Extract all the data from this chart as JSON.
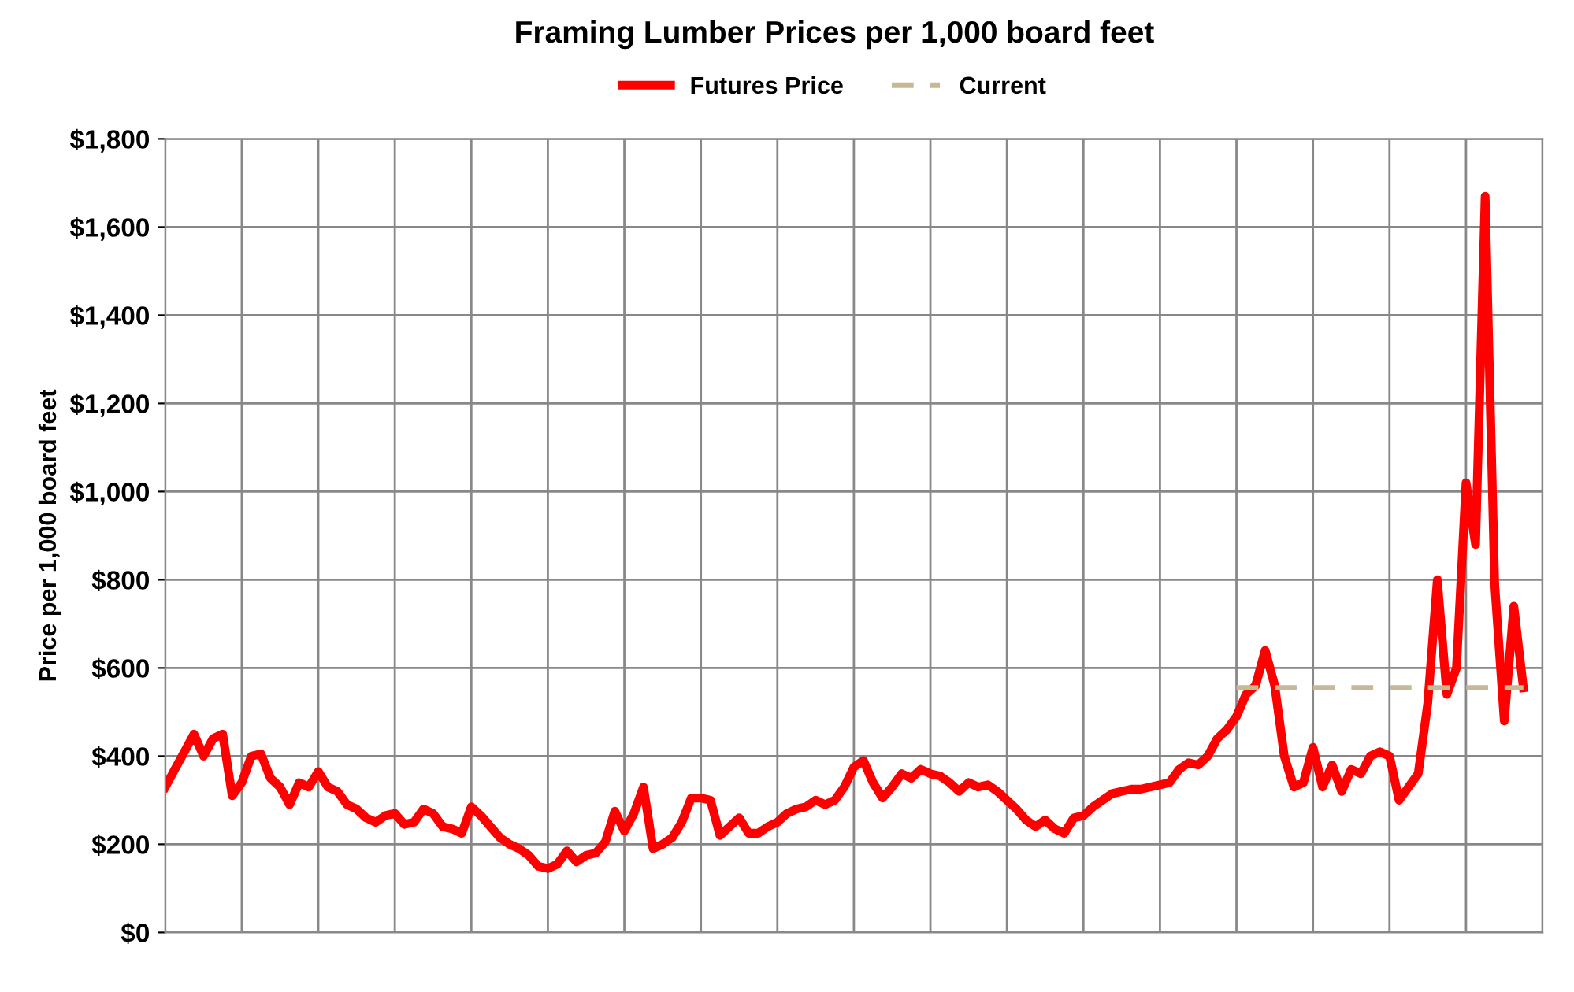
{
  "chart_data": {
    "type": "line",
    "title": "Framing Lumber Prices per 1,000 board feet",
    "ylabel": "Price per 1,000 board feet",
    "categories": [
      null,
      null,
      null,
      null,
      null,
      null,
      null,
      null,
      null,
      null,
      null,
      null,
      null,
      null,
      null,
      null,
      null,
      null,
      null,
      null,
      null,
      null,
      null,
      null,
      null,
      null,
      null,
      null,
      null,
      null,
      null,
      null,
      null,
      null,
      null,
      null,
      null,
      null,
      null,
      null,
      null,
      null,
      null,
      null,
      null,
      null,
      null,
      null,
      null,
      null,
      null,
      null,
      null,
      null,
      null,
      null,
      null,
      null,
      null,
      null,
      null,
      null,
      null,
      null,
      null,
      null,
      null,
      null,
      null,
      null,
      null,
      null,
      null,
      null,
      null,
      null,
      null,
      null,
      null,
      null,
      null,
      null,
      null,
      null,
      null,
      null,
      null,
      null,
      null,
      null,
      null,
      null,
      null,
      null,
      null,
      null,
      null,
      null,
      null,
      null,
      null,
      null,
      null,
      null,
      null,
      null,
      null,
      null,
      null,
      null,
      null,
      null,
      null,
      null,
      null,
      null,
      null,
      null,
      null,
      null,
      null,
      null,
      null,
      null,
      null,
      null,
      null,
      null,
      null,
      null,
      null,
      null,
      null,
      null,
      null,
      null,
      null,
      null,
      null,
      null,
      null,
      null,
      null,
      null,
      null
    ],
    "series": [
      {
        "name": "Futures Price",
        "color": "#ff0000",
        "line_style": "solid",
        "values": [
          330,
          370,
          410,
          450,
          400,
          440,
          450,
          310,
          340,
          400,
          405,
          350,
          330,
          290,
          340,
          330,
          365,
          330,
          320,
          290,
          280,
          260,
          250,
          265,
          270,
          245,
          250,
          280,
          270,
          240,
          235,
          225,
          285,
          265,
          240,
          215,
          200,
          190,
          175,
          150,
          145,
          155,
          185,
          160,
          175,
          180,
          205,
          275,
          230,
          270,
          330,
          190,
          200,
          215,
          250,
          305,
          305,
          300,
          220,
          240,
          260,
          225,
          225,
          240,
          250,
          270,
          280,
          285,
          300,
          290,
          300,
          330,
          375,
          390,
          340,
          305,
          330,
          360,
          350,
          370,
          360,
          355,
          340,
          320,
          340,
          330,
          335,
          320,
          300,
          280,
          255,
          240,
          255,
          235,
          225,
          260,
          265,
          285,
          300,
          315,
          320,
          325,
          325,
          330,
          335,
          340,
          370,
          385,
          380,
          400,
          440,
          460,
          490,
          540,
          560,
          640,
          560,
          400,
          330,
          340,
          420,
          330,
          380,
          320,
          370,
          360,
          400,
          410,
          400,
          300,
          330,
          360,
          520,
          800,
          540,
          600,
          1020,
          880,
          1670,
          790,
          480,
          740,
          555,
          null,
          null
        ]
      },
      {
        "name": "Current",
        "color": "#c8b996",
        "line_style": "dashed",
        "values": [
          null,
          null,
          null,
          null,
          null,
          null,
          null,
          null,
          null,
          null,
          null,
          null,
          null,
          null,
          null,
          null,
          null,
          null,
          null,
          null,
          null,
          null,
          null,
          null,
          null,
          null,
          null,
          null,
          null,
          null,
          null,
          null,
          null,
          null,
          null,
          null,
          null,
          null,
          null,
          null,
          null,
          null,
          null,
          null,
          null,
          null,
          null,
          null,
          null,
          null,
          null,
          null,
          null,
          null,
          null,
          null,
          null,
          null,
          null,
          null,
          null,
          null,
          null,
          null,
          null,
          null,
          null,
          null,
          null,
          null,
          null,
          null,
          null,
          null,
          null,
          null,
          null,
          null,
          null,
          null,
          null,
          null,
          null,
          null,
          null,
          null,
          null,
          null,
          null,
          null,
          null,
          null,
          null,
          null,
          null,
          null,
          null,
          null,
          null,
          null,
          null,
          null,
          null,
          null,
          null,
          null,
          null,
          null,
          null,
          null,
          null,
          null,
          555,
          555,
          555,
          555,
          555,
          555,
          555,
          555,
          555,
          555,
          555,
          555,
          555,
          555,
          555,
          555,
          555,
          555,
          555,
          555,
          555,
          555,
          555,
          555,
          555,
          555,
          555,
          555,
          555,
          555,
          555,
          null,
          null
        ]
      }
    ],
    "ylim": [
      0,
      1800
    ],
    "yticks": [
      {
        "value": 0,
        "label": "$0"
      },
      {
        "value": 200,
        "label": "$200"
      },
      {
        "value": 400,
        "label": "$400"
      },
      {
        "value": 600,
        "label": "$600"
      },
      {
        "value": 800,
        "label": "$800"
      },
      {
        "value": 1000,
        "label": "$1,000"
      },
      {
        "value": 1200,
        "label": "$1,200"
      },
      {
        "value": 1400,
        "label": "$1,400"
      },
      {
        "value": 1600,
        "label": "$1,600"
      },
      {
        "value": 1800,
        "label": "$1,800"
      }
    ],
    "grid": true,
    "legend": "top",
    "tick_labels": "y",
    "marker": "none"
  }
}
